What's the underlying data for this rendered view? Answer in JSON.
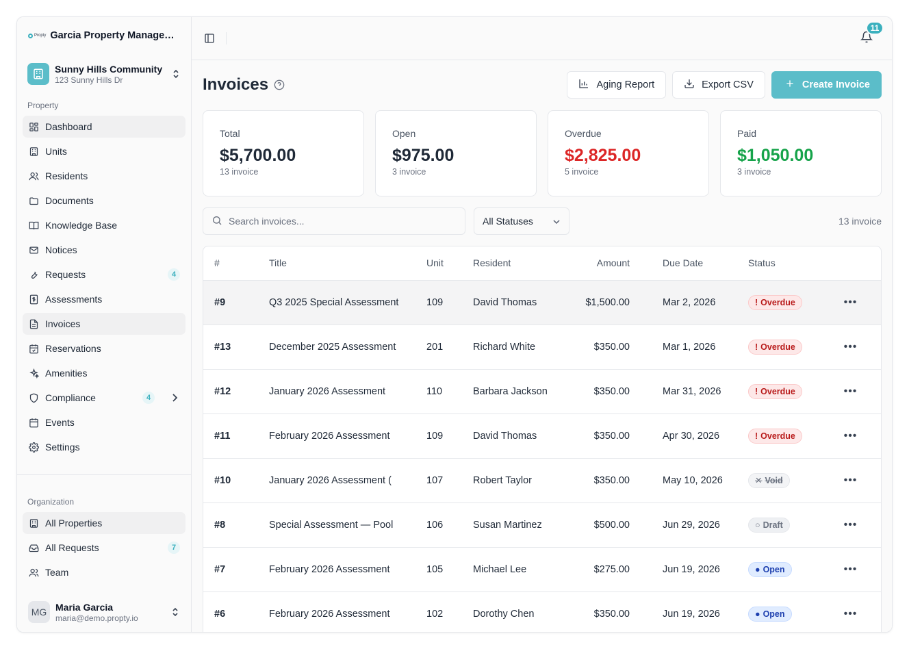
{
  "sidebar": {
    "org_logo_text": "Propty",
    "org_name": "Garcia Property Management",
    "property": {
      "name": "Sunny Hills Community",
      "address": "123 Sunny Hills Dr"
    },
    "section_property": "Property",
    "items": [
      {
        "label": "Dashboard",
        "icon": "dashboard-icon"
      },
      {
        "label": "Units",
        "icon": "building-icon"
      },
      {
        "label": "Residents",
        "icon": "users-icon"
      },
      {
        "label": "Documents",
        "icon": "folder-icon"
      },
      {
        "label": "Knowledge Base",
        "icon": "book-icon"
      },
      {
        "label": "Notices",
        "icon": "mail-icon"
      },
      {
        "label": "Requests",
        "icon": "wrench-icon",
        "badge": "4"
      },
      {
        "label": "Assessments",
        "icon": "dollar-receipt-icon"
      },
      {
        "label": "Invoices",
        "icon": "file-text-icon"
      },
      {
        "label": "Reservations",
        "icon": "calendar-check-icon"
      },
      {
        "label": "Amenities",
        "icon": "sparkles-icon"
      },
      {
        "label": "Compliance",
        "icon": "shield-icon",
        "badge": "4"
      },
      {
        "label": "Events",
        "icon": "calendar-icon"
      },
      {
        "label": "Settings",
        "icon": "gear-icon"
      }
    ],
    "section_org": "Organization",
    "org_items": [
      {
        "label": "All Properties",
        "icon": "building-icon"
      },
      {
        "label": "All Requests",
        "icon": "inbox-icon",
        "badge": "7"
      },
      {
        "label": "Team",
        "icon": "users-icon"
      }
    ],
    "user": {
      "initials": "MG",
      "name": "Maria Garcia",
      "email": "maria@demo.propty.io"
    }
  },
  "topbar": {
    "notifications": "11"
  },
  "page": {
    "title": "Invoices",
    "aging_label": "Aging Report",
    "export_label": "Export CSV",
    "create_label": "Create Invoice"
  },
  "stats": [
    {
      "label": "Total",
      "value": "$5,700.00",
      "sub": "13 invoice",
      "color": "#1f2937"
    },
    {
      "label": "Open",
      "value": "$975.00",
      "sub": "3 invoice",
      "color": "#1f2937"
    },
    {
      "label": "Overdue",
      "value": "$2,825.00",
      "sub": "5 invoice",
      "color": "#dc2626"
    },
    {
      "label": "Paid",
      "value": "$1,050.00",
      "sub": "3 invoice",
      "color": "#16a34a"
    }
  ],
  "filters": {
    "search_placeholder": "Search invoices...",
    "status_selected": "All Statuses",
    "count": "13 invoice"
  },
  "table": {
    "columns": [
      "#",
      "Title",
      "Unit",
      "Resident",
      "Amount",
      "Due Date",
      "Status"
    ],
    "rows": [
      {
        "num": "#9",
        "title": "Q3 2025 Special Assessment",
        "unit": "109",
        "resident": "David Thomas",
        "amount": "$1,500.00",
        "due": "Mar 2, 2026",
        "status": "Overdue",
        "kind": "overdue"
      },
      {
        "num": "#13",
        "title": "December 2025 Assessment",
        "unit": "201",
        "resident": "Richard White",
        "amount": "$350.00",
        "due": "Mar 1, 2026",
        "status": "Overdue",
        "kind": "overdue"
      },
      {
        "num": "#12",
        "title": "January 2026 Assessment",
        "unit": "110",
        "resident": "Barbara Jackson",
        "amount": "$350.00",
        "due": "Mar 31, 2026",
        "status": "Overdue",
        "kind": "overdue"
      },
      {
        "num": "#11",
        "title": "February 2026 Assessment",
        "unit": "109",
        "resident": "David Thomas",
        "amount": "$350.00",
        "due": "Apr 30, 2026",
        "status": "Overdue",
        "kind": "overdue"
      },
      {
        "num": "#10",
        "title": "January 2026 Assessment (",
        "unit": "107",
        "resident": "Robert Taylor",
        "amount": "$350.00",
        "due": "May 10, 2026",
        "status": "Void",
        "kind": "void"
      },
      {
        "num": "#8",
        "title": "Special Assessment — Pool",
        "unit": "106",
        "resident": "Susan Martinez",
        "amount": "$500.00",
        "due": "Jun 29, 2026",
        "status": "Draft",
        "kind": "draft"
      },
      {
        "num": "#7",
        "title": "February 2026 Assessment",
        "unit": "105",
        "resident": "Michael Lee",
        "amount": "$275.00",
        "due": "Jun 19, 2026",
        "status": "Open",
        "kind": "open"
      },
      {
        "num": "#6",
        "title": "February 2026 Assessment",
        "unit": "102",
        "resident": "Dorothy Chen",
        "amount": "$350.00",
        "due": "Jun 19, 2026",
        "status": "Open",
        "kind": "open"
      }
    ]
  },
  "colors": {
    "accent": "#5bbdc9",
    "overdue": "#dc2626",
    "paid": "#16a34a"
  }
}
